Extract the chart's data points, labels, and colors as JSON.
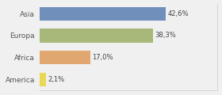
{
  "categories": [
    "Asia",
    "Europa",
    "Africa",
    "America"
  ],
  "values": [
    42.6,
    38.3,
    17.0,
    2.1
  ],
  "labels": [
    "42,6%",
    "38,3%",
    "17,0%",
    "2,1%"
  ],
  "bar_colors": [
    "#7090bb",
    "#a8b87a",
    "#e0a870",
    "#e8d855"
  ],
  "background_color": "#f0f0f0",
  "xlim": [
    0,
    60
  ],
  "bar_height": 0.62,
  "label_fontsize": 6.0,
  "tick_fontsize": 6.5
}
